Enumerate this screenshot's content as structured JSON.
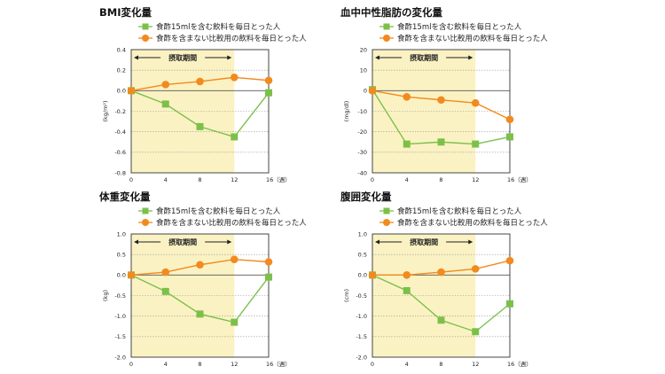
{
  "legend": {
    "vinegar": "食酢15mlを含む飲料を毎日とった人",
    "control": "食酢を含まない比較用の飲料を毎日とった人"
  },
  "period_label": "摂取期間",
  "colors": {
    "vinegar": "#7cc04a",
    "control": "#f28a1e",
    "band": "#fbf2c3",
    "grid": "#9a9a9a"
  },
  "chart_data": [
    {
      "type": "line",
      "title": "BMI変化量",
      "ylabel": "(kg/m²)",
      "x": [
        0,
        4,
        8,
        12,
        16
      ],
      "x_tick_labels": [
        "0",
        "4",
        "8",
        "12",
        "16（週）"
      ],
      "ylim": [
        -0.8,
        0.4
      ],
      "y_ticks": [
        0.4,
        0.2,
        0,
        -0.2,
        -0.4,
        -0.6,
        -0.8
      ],
      "y_tick_labels": [
        "0.4",
        "0.2",
        "0.0",
        "-0.2",
        "-0.4",
        "-0.6",
        "-0.8"
      ],
      "intake_period": [
        0,
        12
      ],
      "series": [
        {
          "name": "食酢15mlを含む飲料を毎日とった人",
          "marker": "square",
          "values": [
            0,
            -0.13,
            -0.35,
            -0.45,
            -0.02
          ]
        },
        {
          "name": "食酢を含まない比較用の飲料を毎日とった人",
          "marker": "circle",
          "values": [
            0,
            0.06,
            0.09,
            0.13,
            0.1
          ]
        }
      ]
    },
    {
      "type": "line",
      "title": "血中中性脂肪の変化量",
      "ylabel": "(mg/dl)",
      "x": [
        0,
        4,
        8,
        12,
        16
      ],
      "x_tick_labels": [
        "0",
        "4",
        "8",
        "12",
        "16（週）"
      ],
      "ylim": [
        -40,
        20
      ],
      "y_ticks": [
        20,
        10,
        0,
        -10,
        -20,
        -30,
        -40
      ],
      "y_tick_labels": [
        "20",
        "10",
        "0",
        "-10",
        "-20",
        "-30",
        "-40"
      ],
      "intake_period": [
        0,
        12
      ],
      "series": [
        {
          "name": "食酢15mlを含む飲料を毎日とった人",
          "marker": "square",
          "values": [
            0.5,
            -26,
            -25,
            -26,
            -22.5
          ]
        },
        {
          "name": "食酢を含まない比較用の飲料を毎日とった人",
          "marker": "circle",
          "values": [
            0,
            -3,
            -4.5,
            -6,
            -14
          ]
        }
      ]
    },
    {
      "type": "line",
      "title": "体重変化量",
      "ylabel": "(kg)",
      "x": [
        0,
        4,
        8,
        12,
        16
      ],
      "x_tick_labels": [
        "0",
        "4",
        "8",
        "12",
        "16（週）"
      ],
      "ylim": [
        -2.0,
        1.0
      ],
      "y_ticks": [
        1.0,
        0.5,
        0,
        -0.5,
        -1.0,
        -1.5,
        -2.0
      ],
      "y_tick_labels": [
        "1.0",
        "0.5",
        "0.0",
        "-0.5",
        "-1.0",
        "-1.5",
        "-2.0"
      ],
      "intake_period": [
        0,
        12
      ],
      "series": [
        {
          "name": "食酢15mlを含む飲料を毎日とった人",
          "marker": "square",
          "values": [
            0,
            -0.4,
            -0.95,
            -1.15,
            -0.05
          ]
        },
        {
          "name": "食酢を含まない比較用の飲料を毎日とった人",
          "marker": "circle",
          "values": [
            0,
            0.07,
            0.25,
            0.38,
            0.32
          ]
        }
      ]
    },
    {
      "type": "line",
      "title": "腹囲変化量",
      "ylabel": "(cm)",
      "x": [
        0,
        4,
        8,
        12,
        16
      ],
      "x_tick_labels": [
        "0",
        "4",
        "8",
        "12",
        "16（週）"
      ],
      "ylim": [
        -2.0,
        1.0
      ],
      "y_ticks": [
        1.0,
        0.5,
        0,
        -0.5,
        -1.0,
        -1.5,
        -2.0
      ],
      "y_tick_labels": [
        "1.0",
        "0.5",
        "0.0",
        "-0.5",
        "-1.0",
        "-1.5",
        "-2.0"
      ],
      "intake_period": [
        0,
        12
      ],
      "series": [
        {
          "name": "食酢15mlを含む飲料を毎日とった人",
          "marker": "square",
          "values": [
            0,
            -0.38,
            -1.1,
            -1.38,
            -0.7
          ]
        },
        {
          "name": "食酢を含まない比較用の飲料を毎日とった人",
          "marker": "circle",
          "values": [
            0,
            0,
            0.07,
            0.15,
            0.35
          ]
        }
      ]
    }
  ]
}
